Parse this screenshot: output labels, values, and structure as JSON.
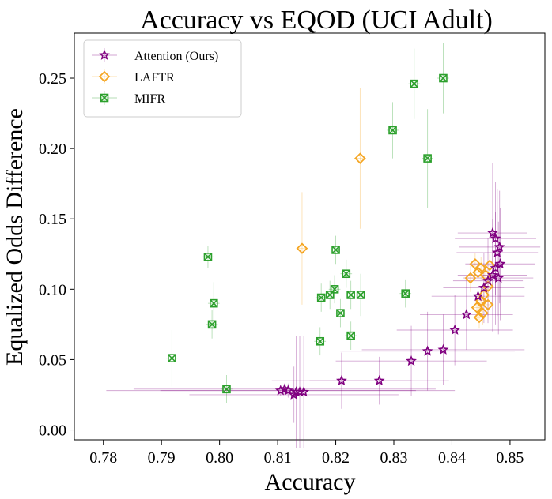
{
  "chart_data": {
    "type": "scatter",
    "title": "Accuracy vs EQOD (UCI Adult)",
    "xlabel": "Accuracy",
    "ylabel": "Equalized Odds Difference",
    "xlim": [
      0.775,
      0.856
    ],
    "ylim": [
      -0.007,
      0.282
    ],
    "xticks": [
      "0.78",
      "0.79",
      "0.80",
      "0.81",
      "0.82",
      "0.83",
      "0.84",
      "0.85"
    ],
    "yticks": [
      "0.00",
      "0.05",
      "0.10",
      "0.15",
      "0.20",
      "0.25"
    ],
    "legend_position": "top-left",
    "colors": {
      "attention": "#800080",
      "laftr": "#f5a623",
      "mifr": "#2ca02c"
    },
    "series": [
      {
        "name": "Attention (Ours)",
        "marker": "star",
        "key": "attention",
        "points": [
          {
            "x": 0.8105,
            "y": 0.028,
            "xerr": 0.03,
            "yerr": 0.004
          },
          {
            "x": 0.8112,
            "y": 0.029,
            "xerr": 0.026,
            "yerr": 0.004
          },
          {
            "x": 0.8118,
            "y": 0.028,
            "xerr": 0.022,
            "yerr": 0.005
          },
          {
            "x": 0.8128,
            "y": 0.025,
            "xerr": 0.018,
            "yerr": 0.02
          },
          {
            "x": 0.8132,
            "y": 0.027,
            "xerr": 0.015,
            "yerr": 0.04
          },
          {
            "x": 0.8138,
            "y": 0.027,
            "xerr": 0.012,
            "yerr": 0.04
          },
          {
            "x": 0.8145,
            "y": 0.027,
            "xerr": 0.01,
            "yerr": 0.04
          },
          {
            "x": 0.821,
            "y": 0.035,
            "xerr": 0.012,
            "yerr": 0.02
          },
          {
            "x": 0.8275,
            "y": 0.035,
            "xerr": 0.012,
            "yerr": 0.017
          },
          {
            "x": 0.833,
            "y": 0.049,
            "xerr": 0.013,
            "yerr": 0.025
          },
          {
            "x": 0.8358,
            "y": 0.056,
            "xerr": 0.015,
            "yerr": 0.028
          },
          {
            "x": 0.8385,
            "y": 0.057,
            "xerr": 0.014,
            "yerr": 0.025
          },
          {
            "x": 0.8405,
            "y": 0.071,
            "xerr": 0.01,
            "yerr": 0.025
          },
          {
            "x": 0.8425,
            "y": 0.082,
            "xerr": 0.008,
            "yerr": 0.025
          },
          {
            "x": 0.8445,
            "y": 0.095,
            "xerr": 0.008,
            "yerr": 0.025
          },
          {
            "x": 0.8455,
            "y": 0.101,
            "xerr": 0.007,
            "yerr": 0.025
          },
          {
            "x": 0.8462,
            "y": 0.106,
            "xerr": 0.006,
            "yerr": 0.03
          },
          {
            "x": 0.847,
            "y": 0.11,
            "xerr": 0.006,
            "yerr": 0.04
          },
          {
            "x": 0.8475,
            "y": 0.115,
            "xerr": 0.006,
            "yerr": 0.04
          },
          {
            "x": 0.848,
            "y": 0.108,
            "xerr": 0.006,
            "yerr": 0.04
          },
          {
            "x": 0.8483,
            "y": 0.118,
            "xerr": 0.006,
            "yerr": 0.04
          },
          {
            "x": 0.8478,
            "y": 0.126,
            "xerr": 0.007,
            "yerr": 0.045
          },
          {
            "x": 0.8482,
            "y": 0.13,
            "xerr": 0.007,
            "yerr": 0.04
          },
          {
            "x": 0.8475,
            "y": 0.136,
            "xerr": 0.007,
            "yerr": 0.04
          },
          {
            "x": 0.847,
            "y": 0.14,
            "xerr": 0.006,
            "yerr": 0.05
          }
        ]
      },
      {
        "name": "LAFTR",
        "marker": "diamond",
        "key": "laftr",
        "points": [
          {
            "x": 0.8142,
            "y": 0.129,
            "xerr": 0.001,
            "yerr": 0.04
          },
          {
            "x": 0.8242,
            "y": 0.193,
            "xerr": 0.001,
            "yerr": 0.05
          },
          {
            "x": 0.8432,
            "y": 0.108,
            "xerr": 0.001,
            "yerr": 0.01
          },
          {
            "x": 0.844,
            "y": 0.118,
            "xerr": 0.001,
            "yerr": 0.008
          },
          {
            "x": 0.8445,
            "y": 0.112,
            "xerr": 0.001,
            "yerr": 0.008
          },
          {
            "x": 0.845,
            "y": 0.115,
            "xerr": 0.001,
            "yerr": 0.008
          },
          {
            "x": 0.8458,
            "y": 0.11,
            "xerr": 0.001,
            "yerr": 0.008
          },
          {
            "x": 0.8465,
            "y": 0.117,
            "xerr": 0.001,
            "yerr": 0.008
          },
          {
            "x": 0.8462,
            "y": 0.102,
            "xerr": 0.001,
            "yerr": 0.008
          },
          {
            "x": 0.8455,
            "y": 0.096,
            "xerr": 0.001,
            "yerr": 0.008
          },
          {
            "x": 0.845,
            "y": 0.092,
            "xerr": 0.001,
            "yerr": 0.008
          },
          {
            "x": 0.8443,
            "y": 0.087,
            "xerr": 0.001,
            "yerr": 0.008
          },
          {
            "x": 0.8447,
            "y": 0.08,
            "xerr": 0.001,
            "yerr": 0.008
          },
          {
            "x": 0.8453,
            "y": 0.083,
            "xerr": 0.001,
            "yerr": 0.008
          },
          {
            "x": 0.8462,
            "y": 0.089,
            "xerr": 0.001,
            "yerr": 0.008
          }
        ]
      },
      {
        "name": "MIFR",
        "marker": "xsquare",
        "key": "mifr",
        "points": [
          {
            "x": 0.7918,
            "y": 0.051,
            "xerr": 0.001,
            "yerr": 0.02
          },
          {
            "x": 0.798,
            "y": 0.123,
            "xerr": 0.001,
            "yerr": 0.008
          },
          {
            "x": 0.7987,
            "y": 0.075,
            "xerr": 0.001,
            "yerr": 0.01
          },
          {
            "x": 0.799,
            "y": 0.09,
            "xerr": 0.001,
            "yerr": 0.015
          },
          {
            "x": 0.8012,
            "y": 0.029,
            "xerr": 0.001,
            "yerr": 0.01
          },
          {
            "x": 0.8173,
            "y": 0.063,
            "xerr": 0.001,
            "yerr": 0.01
          },
          {
            "x": 0.8175,
            "y": 0.094,
            "xerr": 0.001,
            "yerr": 0.01
          },
          {
            "x": 0.819,
            "y": 0.096,
            "xerr": 0.001,
            "yerr": 0.01
          },
          {
            "x": 0.8198,
            "y": 0.1,
            "xerr": 0.001,
            "yerr": 0.01
          },
          {
            "x": 0.82,
            "y": 0.128,
            "xerr": 0.001,
            "yerr": 0.01
          },
          {
            "x": 0.8208,
            "y": 0.083,
            "xerr": 0.001,
            "yerr": 0.01
          },
          {
            "x": 0.8218,
            "y": 0.111,
            "xerr": 0.001,
            "yerr": 0.01
          },
          {
            "x": 0.8226,
            "y": 0.096,
            "xerr": 0.001,
            "yerr": 0.01
          },
          {
            "x": 0.8226,
            "y": 0.067,
            "xerr": 0.001,
            "yerr": 0.01
          },
          {
            "x": 0.8243,
            "y": 0.096,
            "xerr": 0.001,
            "yerr": 0.015
          },
          {
            "x": 0.8298,
            "y": 0.213,
            "xerr": 0.001,
            "yerr": 0.02
          },
          {
            "x": 0.832,
            "y": 0.097,
            "xerr": 0.001,
            "yerr": 0.01
          },
          {
            "x": 0.8335,
            "y": 0.246,
            "xerr": 0.001,
            "yerr": 0.025
          },
          {
            "x": 0.8358,
            "y": 0.193,
            "xerr": 0.001,
            "yerr": 0.035
          },
          {
            "x": 0.8385,
            "y": 0.25,
            "xerr": 0.001,
            "yerr": 0.025
          }
        ]
      }
    ]
  }
}
